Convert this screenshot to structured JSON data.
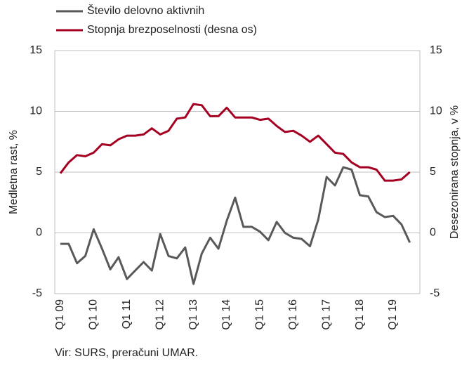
{
  "chart_data": {
    "type": "line",
    "source": "Vir: SURS, preračuni UMAR.",
    "y_label": "Medletna rast, %",
    "y2_label": "Desezonirana stopnja, v %",
    "legend": "top-left",
    "grid": true,
    "categories": [
      "Q1 09",
      null,
      null,
      null,
      "Q1 10",
      null,
      null,
      null,
      "Q1 11",
      null,
      null,
      null,
      "Q1 12",
      null,
      null,
      null,
      "Q1 13",
      null,
      null,
      null,
      "Q1 14",
      null,
      null,
      null,
      "Q1 15",
      null,
      null,
      null,
      "Q1 16",
      null,
      null,
      null,
      "Q1 17",
      null,
      null,
      null,
      "Q1 18",
      null,
      null,
      null,
      "Q1 19",
      null,
      null
    ],
    "ylim": [
      -5,
      15
    ],
    "yticks": [
      -5,
      0,
      5,
      10,
      15
    ],
    "y2lim": [
      -5,
      15
    ],
    "y2ticks": [
      -5,
      0,
      5,
      10,
      15
    ],
    "series": [
      {
        "name": "Število delovno aktivnih",
        "color": "#595959",
        "axis": "y",
        "values": [
          -0.9,
          -0.9,
          -2.5,
          -1.9,
          0.3,
          -1.3,
          -3.0,
          -2.0,
          -3.8,
          -3.1,
          -2.4,
          -3.1,
          -0.1,
          -1.9,
          -2.1,
          -1.2,
          -4.2,
          -1.7,
          -0.4,
          -1.3,
          1.0,
          2.9,
          0.5,
          0.5,
          0.1,
          -0.6,
          0.9,
          0.0,
          -0.4,
          -0.5,
          -1.1,
          1.1,
          4.6,
          3.9,
          5.4,
          5.2,
          3.1,
          3.0,
          1.7,
          1.3,
          1.4,
          0.7,
          -0.8
        ]
      },
      {
        "name": "Stopnja brezposelnosti (desna os)",
        "color": "#a50021",
        "axis": "y2",
        "values": [
          4.9,
          5.8,
          6.4,
          6.3,
          6.6,
          7.3,
          7.2,
          7.7,
          8.0,
          8.0,
          8.1,
          8.6,
          8.1,
          8.4,
          9.4,
          9.5,
          10.6,
          10.5,
          9.6,
          9.6,
          10.3,
          9.5,
          9.5,
          9.5,
          9.3,
          9.4,
          8.8,
          8.3,
          8.4,
          8.0,
          7.5,
          8.0,
          7.3,
          6.6,
          6.5,
          5.8,
          5.4,
          5.4,
          5.2,
          4.3,
          4.3,
          4.4,
          5.0
        ]
      }
    ]
  }
}
